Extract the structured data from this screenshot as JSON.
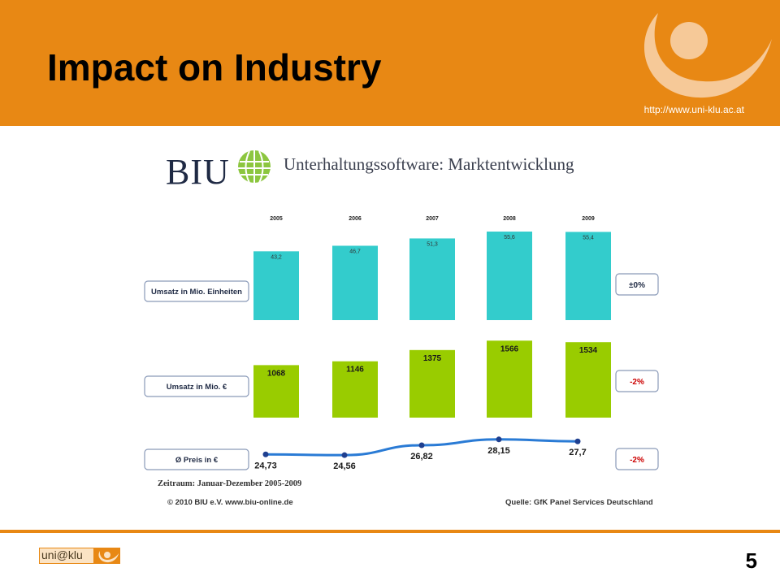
{
  "slide": {
    "title": "Impact on Industry",
    "url": "http://www.uni-klu.ac.at",
    "page_number": "5",
    "footer_logo_text": "uni@klu"
  },
  "colors": {
    "header": "#e88814",
    "bar_units": "#33cccc",
    "bar_revenue": "#99cc00",
    "price_line": "#2a7bd5",
    "negative": "#cc0000"
  },
  "figure": {
    "brand": "BIU",
    "heading": "Unterhaltungssoftware: Marktentwicklung",
    "period": "Zeitraum: Januar-Dezember 2005-2009",
    "copyright": "© 2010 BIU e.V.  www.biu-online.de",
    "source": "Quelle: GfK Panel Services Deutschland"
  },
  "chart_data": {
    "type": "bar",
    "categories": [
      "2005",
      "2006",
      "2007",
      "2008",
      "2009"
    ],
    "series": [
      {
        "name": "Umsatz in Mio. Einheiten",
        "values": [
          43.2,
          46.7,
          51.3,
          55.6,
          55.4
        ],
        "labels": [
          "43,2",
          "46,7",
          "51,3",
          "55,6",
          "55,4"
        ],
        "change": "±0%"
      },
      {
        "name": "Umsatz in Mio. €",
        "values": [
          1068,
          1146,
          1375,
          1566,
          1534
        ],
        "labels": [
          "1068",
          "1146",
          "1375",
          "1566",
          "1534"
        ],
        "change": "-2%"
      },
      {
        "name": "Ø Preis in €",
        "values": [
          24.73,
          24.56,
          26.82,
          28.15,
          27.7
        ],
        "labels": [
          "24,73",
          "24,56",
          "26,82",
          "28,15",
          "27,7"
        ],
        "change": "-2%"
      }
    ],
    "title": "Unterhaltungssoftware: Marktentwicklung",
    "legend": "left"
  }
}
